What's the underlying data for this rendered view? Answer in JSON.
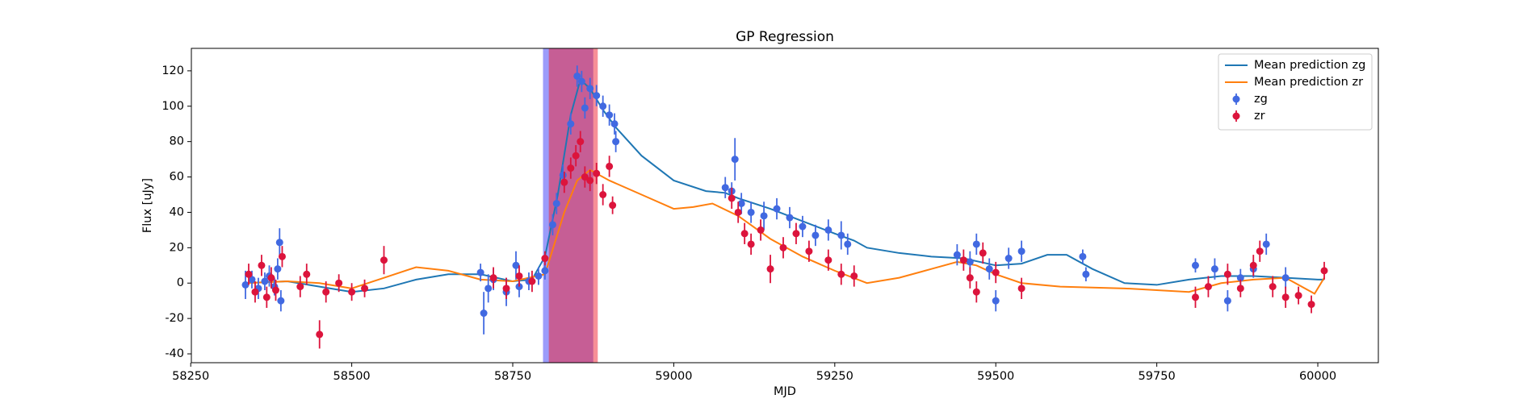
{
  "chart_data": {
    "type": "line",
    "title": "GP Regression",
    "x_label": "MJD",
    "y_label": "Flux [uJy]",
    "xlim": [
      58251,
      60094
    ],
    "ylim": [
      -45,
      132.7
    ],
    "xticks": [
      58250,
      58500,
      58750,
      59000,
      59250,
      59500,
      59750,
      60000
    ],
    "yticks": [
      -40,
      -20,
      0,
      20,
      40,
      60,
      80,
      100,
      120
    ],
    "legend": "upper right",
    "spans": [
      {
        "x": [
          58797,
          58875
        ],
        "color": "#3a3af5"
      },
      {
        "x": [
          58806,
          58882
        ],
        "color": "#f02030"
      }
    ],
    "series": [
      {
        "name": "Mean prediction zg",
        "kind": "line",
        "color": "#1f77b4",
        "x": [
          58335,
          58400,
          58450,
          58500,
          58550,
          58600,
          58650,
          58700,
          58750,
          58780,
          58800,
          58820,
          58840,
          58855,
          58870,
          58890,
          58910,
          58950,
          59000,
          59050,
          59080,
          59100,
          59150,
          59200,
          59250,
          59280,
          59300,
          59350,
          59400,
          59450,
          59500,
          59540,
          59580,
          59610,
          59650,
          59700,
          59750,
          59800,
          59850,
          59900,
          59950,
          60000,
          60010
        ],
        "values": [
          0,
          1,
          -2,
          -5,
          -3,
          2,
          5,
          5,
          1,
          2,
          15,
          50,
          95,
          115,
          110,
          98,
          88,
          72,
          58,
          52,
          51,
          48,
          42,
          35,
          28,
          24,
          20,
          17,
          15,
          14,
          10,
          11,
          16,
          16,
          8,
          0,
          -1,
          2,
          4,
          4,
          3,
          2,
          2
        ]
      },
      {
        "name": "Mean prediction zr",
        "kind": "line",
        "color": "#ff7f0e",
        "x": [
          58335,
          58400,
          58450,
          58500,
          58550,
          58600,
          58650,
          58700,
          58750,
          58800,
          58830,
          58850,
          58870,
          58900,
          58950,
          59000,
          59030,
          59060,
          59100,
          59150,
          59200,
          59250,
          59300,
          59350,
          59400,
          59440,
          59470,
          59500,
          59540,
          59600,
          59700,
          59800,
          59850,
          59900,
          59950,
          59995,
          60010
        ],
        "values": [
          0,
          1,
          0,
          -3,
          3,
          9,
          7,
          2,
          1,
          5,
          40,
          58,
          64,
          58,
          50,
          42,
          43,
          45,
          38,
          25,
          15,
          7,
          0,
          3,
          8,
          12,
          10,
          5,
          0,
          -2,
          -3,
          -5,
          0,
          2,
          3,
          -6,
          3
        ]
      },
      {
        "name": "zg",
        "kind": "errorbar",
        "color": "#4169e1",
        "x": [
          58335,
          58345,
          58355,
          58365,
          58372,
          58380,
          58385,
          58388,
          58390,
          58700,
          58705,
          58712,
          58720,
          58740,
          58755,
          58760,
          58775,
          58790,
          58800,
          58812,
          58818,
          58828,
          58840,
          58850,
          58857,
          58862,
          58870,
          58880,
          58890,
          58900,
          58910,
          58908,
          59080,
          59090,
          59095,
          59105,
          59120,
          59140,
          59160,
          59180,
          59200,
          59220,
          59240,
          59260,
          59270,
          59440,
          59460,
          59470,
          59490,
          59500,
          59520,
          59540,
          59635,
          59640,
          59810,
          59840,
          59860,
          59880,
          59900,
          59920,
          59950
        ],
        "values": [
          -1,
          2,
          -3,
          1,
          4,
          -2,
          8,
          23,
          -10,
          6,
          -17,
          -3,
          2,
          -5,
          10,
          -2,
          1,
          4,
          7,
          33,
          45,
          61,
          90,
          117,
          114,
          99,
          110,
          106,
          100,
          95,
          80,
          90,
          54,
          52,
          70,
          45,
          40,
          38,
          42,
          37,
          32,
          27,
          30,
          27,
          22,
          16,
          12,
          22,
          8,
          -10,
          14,
          18,
          15,
          5,
          10,
          8,
          -10,
          3,
          8,
          22,
          3
        ],
        "errors": [
          8,
          5,
          6,
          5,
          6,
          5,
          6,
          8,
          6,
          5,
          12,
          8,
          6,
          8,
          8,
          6,
          5,
          5,
          5,
          6,
          6,
          6,
          6,
          6,
          6,
          6,
          6,
          6,
          6,
          6,
          6,
          6,
          6,
          5,
          12,
          6,
          6,
          8,
          6,
          6,
          6,
          6,
          6,
          8,
          6,
          6,
          6,
          6,
          6,
          6,
          6,
          6,
          4,
          4,
          4,
          6,
          6,
          5,
          5,
          6,
          6
        ]
      },
      {
        "name": "zr",
        "kind": "errorbar",
        "color": "#dc143c",
        "x": [
          58340,
          58350,
          58360,
          58368,
          58375,
          58382,
          58392,
          58420,
          58430,
          58450,
          58460,
          58480,
          58500,
          58520,
          58550,
          58720,
          58740,
          58760,
          58780,
          58800,
          58830,
          58840,
          58848,
          58855,
          58862,
          58870,
          58880,
          58890,
          58900,
          58905,
          59090,
          59100,
          59110,
          59120,
          59135,
          59150,
          59170,
          59190,
          59210,
          59240,
          59260,
          59280,
          59450,
          59460,
          59470,
          59480,
          59500,
          59540,
          59810,
          59830,
          59860,
          59880,
          59900,
          59910,
          59930,
          59950,
          59970,
          59990,
          60010
        ],
        "values": [
          5,
          -5,
          10,
          -8,
          3,
          -4,
          15,
          -2,
          5,
          -29,
          -5,
          0,
          -5,
          -3,
          13,
          3,
          -3,
          4,
          1,
          14,
          57,
          65,
          72,
          80,
          60,
          58,
          62,
          50,
          66,
          44,
          48,
          40,
          28,
          22,
          30,
          8,
          20,
          28,
          18,
          13,
          5,
          4,
          13,
          3,
          -5,
          17,
          6,
          -3,
          -8,
          -2,
          5,
          -3,
          10,
          18,
          -2,
          -8,
          -7,
          -12,
          7
        ],
        "errors": [
          6,
          6,
          6,
          6,
          6,
          6,
          6,
          6,
          6,
          8,
          6,
          5,
          5,
          5,
          8,
          6,
          6,
          6,
          6,
          4,
          6,
          6,
          6,
          6,
          6,
          6,
          6,
          6,
          6,
          5,
          6,
          6,
          6,
          6,
          6,
          8,
          6,
          6,
          6,
          6,
          6,
          6,
          6,
          6,
          6,
          6,
          6,
          6,
          6,
          6,
          6,
          5,
          6,
          6,
          6,
          6,
          5,
          5,
          5
        ]
      }
    ]
  }
}
